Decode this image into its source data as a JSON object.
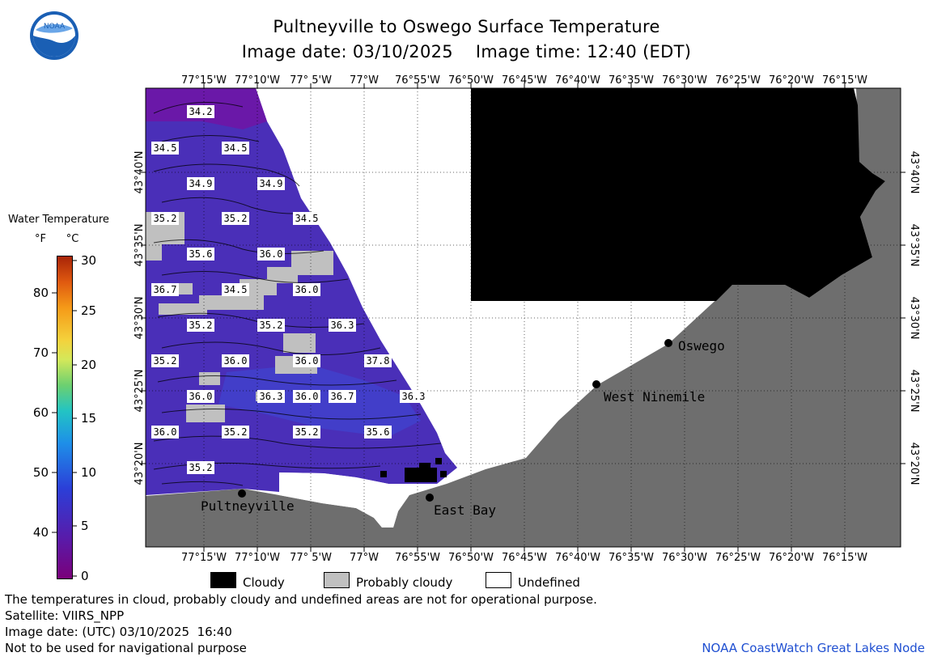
{
  "header": {
    "title": "Pultneyville to Oswego Surface Temperature",
    "subtitle": "Image date: 03/10/2025    Image time: 12:40 (EDT)",
    "logo_text": "NOAA"
  },
  "map": {
    "lon_labels": [
      "77°15'W",
      "77°10'W",
      "77° 5'W",
      "77°W",
      "76°55'W",
      "76°50'W",
      "76°45'W",
      "76°40'W",
      "76°35'W",
      "76°30'W",
      "76°25'W",
      "76°20'W",
      "76°15'W"
    ],
    "lat_labels": [
      "43°40'N",
      "43°35'N",
      "43°30'N",
      "43°25'N",
      "43°20'N"
    ],
    "temperature_labels": [
      "34.2",
      "34.5",
      "34.5",
      "34.9",
      "34.9",
      "35.2",
      "35.2",
      "34.5",
      "35.6",
      "36.0",
      "36.7",
      "34.5",
      "36.0",
      "35.2",
      "35.2",
      "36.3",
      "36.0",
      "35.2",
      "36.0",
      "37.8",
      "36.0",
      "36.3",
      "36.7",
      "36.3",
      "36.0",
      "36.0",
      "35.2",
      "35.2",
      "35.6",
      "35.2"
    ],
    "places": [
      {
        "name": "Pultneyville"
      },
      {
        "name": "East Bay"
      },
      {
        "name": "West Ninemile"
      },
      {
        "name": "Oswego"
      }
    ],
    "colors": {
      "water": "#4a2fb8",
      "cloud": "#000000",
      "probably_cloudy": "#c0c0c0",
      "land": "#6e6e6e",
      "undefined": "#ffffff"
    }
  },
  "colorbar": {
    "title": "Water Temperature",
    "units": "°F      °C",
    "f_ticks": [
      "80",
      "70",
      "60",
      "50",
      "40"
    ],
    "c_ticks": [
      "30",
      "25",
      "20",
      "15",
      "10",
      "5",
      "0"
    ]
  },
  "legend": {
    "cloudy": "Cloudy",
    "probably_cloudy": "Probably cloudy",
    "undefined": "Undefined"
  },
  "footer": {
    "line1": "The temperatures in cloud, probably cloudy and undefined areas are not for operational purpose.",
    "line2": "Satellite: VIIRS_NPP",
    "line3": "Image date: (UTC) 03/10/2025  16:40",
    "line4": "Not to be used for navigational purpose",
    "credit": "NOAA CoastWatch Great Lakes Node"
  }
}
